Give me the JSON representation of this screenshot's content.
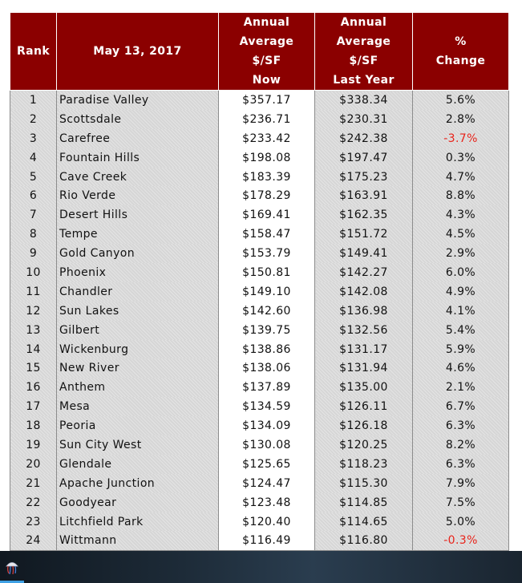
{
  "table": {
    "headers": {
      "rank": "Rank",
      "date": "May 13, 2017",
      "now": [
        "Annual",
        "Average",
        "$/SF",
        "Now"
      ],
      "last_year": [
        "Annual",
        "Average",
        "$/SF",
        "Last Year"
      ],
      "change": [
        "%",
        "Change"
      ]
    },
    "rows": [
      {
        "rank": "1",
        "city": "Paradise Valley",
        "now": "$357.17",
        "prev": "$338.34",
        "change": "5.6%"
      },
      {
        "rank": "2",
        "city": "Scottsdale",
        "now": "$236.71",
        "prev": "$230.31",
        "change": "2.8%"
      },
      {
        "rank": "3",
        "city": "Carefree",
        "now": "$233.42",
        "prev": "$242.38",
        "change": "-3.7%"
      },
      {
        "rank": "4",
        "city": "Fountain Hills",
        "now": "$198.08",
        "prev": "$197.47",
        "change": "0.3%"
      },
      {
        "rank": "5",
        "city": "Cave Creek",
        "now": "$183.39",
        "prev": "$175.23",
        "change": "4.7%"
      },
      {
        "rank": "6",
        "city": "Rio Verde",
        "now": "$178.29",
        "prev": "$163.91",
        "change": "8.8%"
      },
      {
        "rank": "7",
        "city": "Desert Hills",
        "now": "$169.41",
        "prev": "$162.35",
        "change": "4.3%"
      },
      {
        "rank": "8",
        "city": "Tempe",
        "now": "$158.47",
        "prev": "$151.72",
        "change": "4.5%"
      },
      {
        "rank": "9",
        "city": "Gold Canyon",
        "now": "$153.79",
        "prev": "$149.41",
        "change": "2.9%"
      },
      {
        "rank": "10",
        "city": "Phoenix",
        "now": "$150.81",
        "prev": "$142.27",
        "change": "6.0%"
      },
      {
        "rank": "11",
        "city": "Chandler",
        "now": "$149.10",
        "prev": "$142.08",
        "change": "4.9%"
      },
      {
        "rank": "12",
        "city": "Sun Lakes",
        "now": "$142.60",
        "prev": "$136.98",
        "change": "4.1%"
      },
      {
        "rank": "13",
        "city": "Gilbert",
        "now": "$139.75",
        "prev": "$132.56",
        "change": "5.4%"
      },
      {
        "rank": "14",
        "city": "Wickenburg",
        "now": "$138.86",
        "prev": "$131.17",
        "change": "5.9%"
      },
      {
        "rank": "15",
        "city": "New River",
        "now": "$138.06",
        "prev": "$131.94",
        "change": "4.6%"
      },
      {
        "rank": "16",
        "city": "Anthem",
        "now": "$137.89",
        "prev": "$135.00",
        "change": "2.1%"
      },
      {
        "rank": "17",
        "city": "Mesa",
        "now": "$134.59",
        "prev": "$126.11",
        "change": "6.7%"
      },
      {
        "rank": "18",
        "city": "Peoria",
        "now": "$134.09",
        "prev": "$126.18",
        "change": "6.3%"
      },
      {
        "rank": "19",
        "city": "Sun City West",
        "now": "$130.08",
        "prev": "$120.25",
        "change": "8.2%"
      },
      {
        "rank": "20",
        "city": "Glendale",
        "now": "$125.65",
        "prev": "$118.23",
        "change": "6.3%"
      },
      {
        "rank": "21",
        "city": "Apache Junction",
        "now": "$124.47",
        "prev": "$115.30",
        "change": "7.9%"
      },
      {
        "rank": "22",
        "city": "Goodyear",
        "now": "$123.48",
        "prev": "$114.85",
        "change": "7.5%"
      },
      {
        "rank": "23",
        "city": "Litchfield Park",
        "now": "$120.40",
        "prev": "$114.65",
        "change": "5.0%"
      },
      {
        "rank": "24",
        "city": "Wittmann",
        "now": "$116.49",
        "prev": "$116.80",
        "change": "-0.3%"
      }
    ]
  },
  "colors": {
    "header_bg": "#8b0000",
    "negative": "#e8231a"
  },
  "taskbar": {
    "start_icon": "jellyfish-start-icon"
  }
}
